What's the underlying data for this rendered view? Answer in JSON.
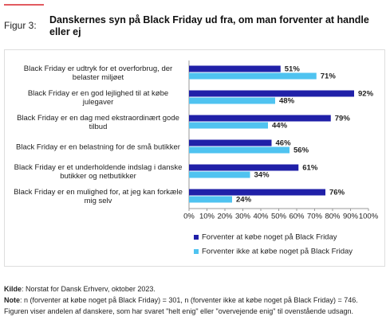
{
  "figure_label": "Figur 3:",
  "chart_data": {
    "type": "hbar",
    "title": "Danskernes syn på Black Friday ud fra, om man forventer at handle eller ej",
    "categories": [
      "Black Friday er udtryk for et overforbrug, der belaster miljøet",
      "Black Friday er en god lejlighed til at købe julegaver",
      "Black Friday er en dag med ekstraordinært gode tilbud",
      "Black Friday er en belastning for de små butikker",
      "Black Friday er et underholdende indslag i danske butikker og netbutikker",
      "Black Friday er en mulighed for, at jeg kan forkæle mig selv"
    ],
    "series": [
      {
        "name": "Forventer at købe noget på Black Friday",
        "color": "#2020a8",
        "values": [
          51,
          92,
          79,
          46,
          61,
          76
        ],
        "value_labels": [
          "51%",
          "92%",
          "79%",
          "46%",
          "61%",
          "76%"
        ]
      },
      {
        "name": "Forventer ikke at købe noget på Black Friday",
        "color": "#4fc3f0",
        "values": [
          71,
          48,
          44,
          56,
          34,
          24
        ],
        "value_labels": [
          "71%",
          "48%",
          "44%",
          "56%",
          "34%",
          "24%"
        ]
      }
    ],
    "xlim": [
      0,
      100
    ],
    "xticks": [
      {
        "value": 0,
        "label": "0%"
      },
      {
        "value": 10,
        "label": "10%"
      },
      {
        "value": 20,
        "label": "20%"
      },
      {
        "value": 30,
        "label": "30%"
      },
      {
        "value": 40,
        "label": "40%"
      },
      {
        "value": 50,
        "label": "50%"
      },
      {
        "value": 60,
        "label": "60%"
      },
      {
        "value": 70,
        "label": "70%"
      },
      {
        "value": 80,
        "label": "80%"
      },
      {
        "value": 90,
        "label": "90%"
      },
      {
        "value": 100,
        "label": "100%"
      }
    ],
    "legend": "bottom"
  },
  "footer": {
    "source_label": "Kilde",
    "source_text": ": Norstat for Dansk Erhverv, oktober 2023.",
    "note_label": "Note",
    "note_text": ": n (forventer at købe noget på Black Friday) = 301, n (forventer ikke at købe noget på Black Friday) = 746.",
    "description": "Figuren viser andelen af danskere, som har svaret \"helt enig\" eller \"overvejende enig\" til ovenstående udsagn."
  }
}
